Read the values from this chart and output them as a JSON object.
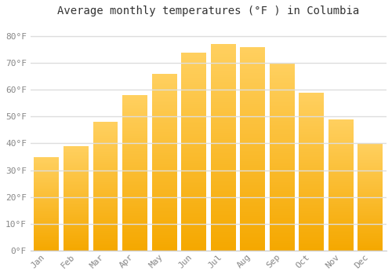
{
  "title": "Average monthly temperatures (°F ) in Columbia",
  "months": [
    "Jan",
    "Feb",
    "Mar",
    "Apr",
    "May",
    "Jun",
    "Jul",
    "Aug",
    "Sep",
    "Oct",
    "Nov",
    "Dec"
  ],
  "values": [
    35,
    39,
    48,
    58,
    66,
    74,
    77,
    76,
    70,
    59,
    49,
    40
  ],
  "bar_color_bottom": "#F5A800",
  "bar_color_top": "#FFD060",
  "ylim": [
    0,
    85
  ],
  "yticks": [
    0,
    10,
    20,
    30,
    40,
    50,
    60,
    70,
    80
  ],
  "ytick_labels": [
    "0°F",
    "10°F",
    "20°F",
    "30°F",
    "40°F",
    "50°F",
    "60°F",
    "70°F",
    "80°F"
  ],
  "background_color": "#ffffff",
  "grid_color": "#dddddd",
  "title_fontsize": 10,
  "tick_fontsize": 8,
  "tick_color": "#888888",
  "bar_width": 0.85
}
